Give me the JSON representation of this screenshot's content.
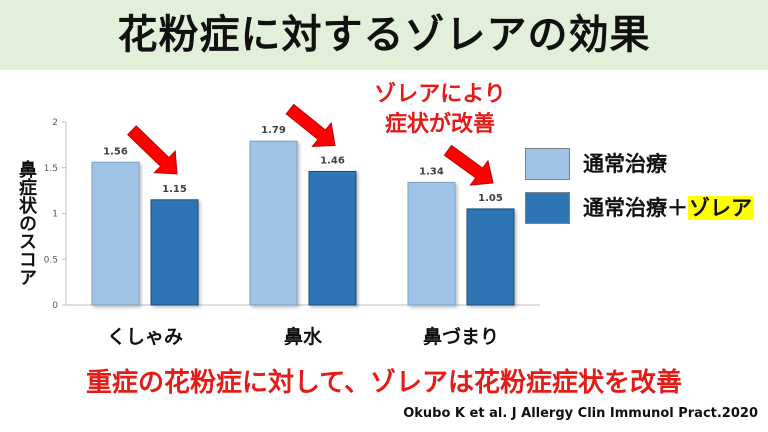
{
  "title": "花粉症に対するゾレアの効果",
  "annotation": [
    "ゾレアにより",
    "症状が改善"
  ],
  "conclusion": "重症の花粉症に対して、ゾレアは花粉症症状を改善",
  "citation": "Okubo K et al. J Allergy Clin Immunol Pract.2020",
  "legend": {
    "series1_label": "通常治療",
    "series2_prefix": "通常治療＋",
    "series2_highlight": "ゾレア"
  },
  "colors": {
    "series1": "#a0c4e8",
    "series2": "#2e75b6",
    "arrow": "#ff0000",
    "text_red": "#e41b17",
    "header_bg": "#e2efd9",
    "highlight": "#ffff00"
  },
  "chart_data": {
    "type": "bar",
    "categories": [
      "くしゃみ",
      "鼻水",
      "鼻づまり"
    ],
    "series": [
      {
        "name": "通常治療",
        "values": [
          1.56,
          1.79,
          1.34
        ]
      },
      {
        "name": "通常治療＋ゾレア",
        "values": [
          1.15,
          1.46,
          1.05
        ]
      }
    ],
    "ylabel": "鼻症状のスコア",
    "xlabel": "",
    "ylim": [
      0,
      2
    ],
    "yticks": [
      "0",
      "0.5",
      "1",
      "1.5",
      "2"
    ],
    "legend": "right",
    "grid": false
  }
}
